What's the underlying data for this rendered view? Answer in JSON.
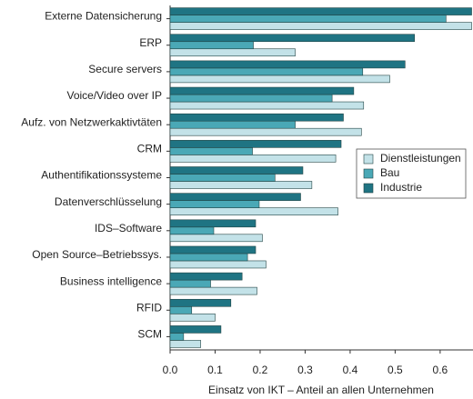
{
  "chart_data": {
    "type": "hbar",
    "xlabel": "Einsatz von IKT – Anteil an allen Unternehmen",
    "categories": [
      "Externe Datensicherung",
      "ERP",
      "Secure servers",
      "Voice/Video over IP",
      "Aufz. von Netzwerkaktivtäten",
      "CRM",
      "Authentifikationssysteme",
      "Datenverschlüsselung",
      "IDS–Software",
      "Open Source–Betriebssys.",
      "Business intelligence",
      "RFID",
      "SCM"
    ],
    "series": [
      {
        "name": "Dienstleistungen",
        "color": "#c3e2e8",
        "values": [
          0.67,
          0.278,
          0.488,
          0.43,
          0.425,
          0.368,
          0.315,
          0.373,
          0.205,
          0.213,
          0.193,
          0.1,
          0.068
        ]
      },
      {
        "name": "Bau",
        "color": "#4aa8b6",
        "values": [
          0.613,
          0.185,
          0.428,
          0.36,
          0.278,
          0.183,
          0.233,
          0.198,
          0.097,
          0.172,
          0.09,
          0.048,
          0.03
        ]
      },
      {
        "name": "Industrie",
        "color": "#1f7483",
        "values": [
          0.67,
          0.543,
          0.522,
          0.408,
          0.385,
          0.38,
          0.295,
          0.29,
          0.19,
          0.19,
          0.16,
          0.135,
          0.113
        ]
      }
    ],
    "xlim": [
      0,
      0.673
    ],
    "xticks": [
      {
        "value": 0,
        "label": "0.0"
      },
      0.1,
      0.2,
      0.3,
      0.4,
      0.5,
      0.6
    ],
    "legend": "right"
  }
}
